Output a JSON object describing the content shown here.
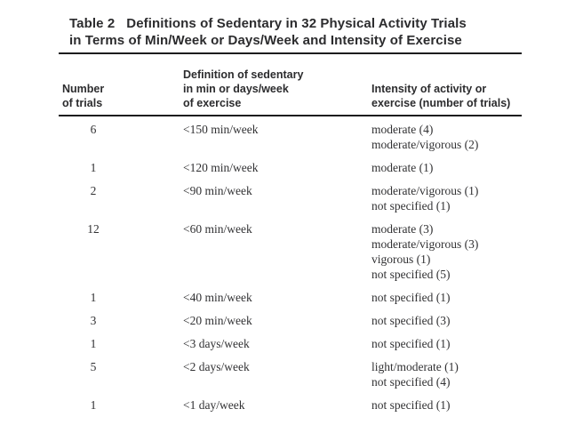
{
  "table": {
    "label": "Table 2",
    "title": "Definitions of Sedentary in 32 Physical Activity Trials\nin Terms of Min/Week or Days/Week and Intensity of Exercise",
    "columns": [
      {
        "key": "trials",
        "header": "Number\nof trials"
      },
      {
        "key": "definition",
        "header": "Definition of sedentary\nin min or days/week\nof exercise"
      },
      {
        "key": "intensity",
        "header": "Intensity of activity or\nexercise (number of trials)"
      }
    ],
    "rows": [
      {
        "trials": "6",
        "definition": "<150 min/week",
        "intensity": "moderate (4)\nmoderate/vigorous (2)"
      },
      {
        "trials": "1",
        "definition": "<120 min/week",
        "intensity": "moderate (1)"
      },
      {
        "trials": "2",
        "definition": "<90 min/week",
        "intensity": "moderate/vigorous (1)\nnot specified (1)"
      },
      {
        "trials": "12",
        "definition": "<60 min/week",
        "intensity": "moderate (3)\nmoderate/vigorous (3)\nvigorous (1)\nnot specified (5)"
      },
      {
        "trials": "1",
        "definition": "<40 min/week",
        "intensity": "not specified (1)"
      },
      {
        "trials": "3",
        "definition": "<20 min/week",
        "intensity": "not specified (3)"
      },
      {
        "trials": "1",
        "definition": "<3 days/week",
        "intensity": "not specified (1)"
      },
      {
        "trials": "5",
        "definition": "<2 days/week",
        "intensity": "light/moderate (1)\nnot specified (4)"
      },
      {
        "trials": "1",
        "definition": "<1 day/week",
        "intensity": "not specified (1)"
      }
    ],
    "colors": {
      "text_body": "#313133",
      "text_heading": "#2c2c2e",
      "rule": "#1c1c1e",
      "background": "#ffffff"
    }
  }
}
